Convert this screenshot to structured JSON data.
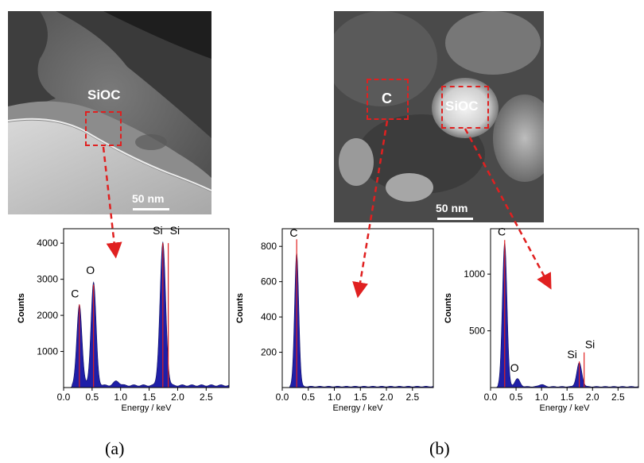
{
  "figure": {
    "panel_a_label": "(a)",
    "panel_b_label": "(b)",
    "colors": {
      "roi": "#e02020",
      "spectrum_fill": "#1f1fa8",
      "peak_marker": "#e02020",
      "scale_bar": "#ffffff"
    }
  },
  "image_a": {
    "region_label": "SiOC",
    "scale_bar": "50 nm"
  },
  "image_b": {
    "region_c_label": "C",
    "region_sioc_label": "SiOC",
    "scale_bar": "50 nm"
  },
  "chart_data": [
    {
      "type": "area",
      "panel": "a",
      "title": "",
      "xlabel": "Energy / keV",
      "ylabel": "Counts",
      "xlim": [
        0,
        2.9
      ],
      "ylim": [
        0,
        4400
      ],
      "xticks": [
        0.0,
        0.5,
        1.0,
        1.5,
        2.0,
        2.5
      ],
      "xtick_labels": [
        "0.0",
        "0.5",
        "1.0",
        "1.5",
        "2.0",
        "2.5"
      ],
      "yticks": [
        1000,
        2000,
        3000,
        4000
      ],
      "ytick_labels": [
        "1000",
        "2000",
        "3000",
        "4000"
      ],
      "peaks": [
        {
          "x": 0.277,
          "y": 2250,
          "width": 0.045
        },
        {
          "x": 0.525,
          "y": 2850,
          "width": 0.045
        },
        {
          "x": 0.93,
          "y": 120,
          "width": 0.05
        },
        {
          "x": 1.74,
          "y": 3950,
          "width": 0.05
        }
      ],
      "background": 60,
      "markers": [
        {
          "x": 0.277,
          "y": 2300
        },
        {
          "x": 0.525,
          "y": 2850
        },
        {
          "x": 1.74,
          "y": 4000
        },
        {
          "x": 1.835,
          "y": 4000
        }
      ],
      "annotations": [
        {
          "text": "C",
          "x": 0.2,
          "y": 2500
        },
        {
          "text": "O",
          "x": 0.47,
          "y": 3150
        },
        {
          "text": "Si",
          "x": 1.65,
          "y": 4250
        },
        {
          "text": "Si",
          "x": 1.95,
          "y": 4250
        }
      ]
    },
    {
      "type": "area",
      "panel": "b-left",
      "title": "",
      "xlabel": "Energy / keV",
      "ylabel": "Counts",
      "xlim": [
        0,
        2.9
      ],
      "ylim": [
        0,
        900
      ],
      "xticks": [
        0.0,
        0.5,
        1.0,
        1.5,
        2.0,
        2.5
      ],
      "xtick_labels": [
        "0.0",
        "0.5",
        "1.0",
        "1.5",
        "2.0",
        "2.5"
      ],
      "yticks": [
        200,
        400,
        600,
        800
      ],
      "ytick_labels": [
        "200",
        "400",
        "600",
        "800"
      ],
      "peaks": [
        {
          "x": 0.277,
          "y": 760,
          "width": 0.04
        }
      ],
      "background": 6,
      "markers": [
        {
          "x": 0.277,
          "y": 840
        }
      ],
      "annotations": [
        {
          "text": "C",
          "x": 0.22,
          "y": 855
        }
      ]
    },
    {
      "type": "area",
      "panel": "b-right",
      "title": "",
      "xlabel": "Energy / keV",
      "ylabel": "Counts",
      "xlim": [
        0,
        2.9
      ],
      "ylim": [
        0,
        1400
      ],
      "xticks": [
        0.0,
        0.5,
        1.0,
        1.5,
        2.0,
        2.5
      ],
      "xtick_labels": [
        "0.0",
        "0.5",
        "1.0",
        "1.5",
        "2.0",
        "2.5"
      ],
      "yticks": [
        500,
        1000
      ],
      "ytick_labels": [
        "500",
        "1000"
      ],
      "peaks": [
        {
          "x": 0.277,
          "y": 1270,
          "width": 0.045
        },
        {
          "x": 0.525,
          "y": 70,
          "width": 0.05
        },
        {
          "x": 1.0,
          "y": 20,
          "width": 0.05
        },
        {
          "x": 1.74,
          "y": 210,
          "width": 0.05
        }
      ],
      "background": 8,
      "markers": [
        {
          "x": 0.277,
          "y": 1300
        },
        {
          "x": 1.74,
          "y": 230
        },
        {
          "x": 1.835,
          "y": 310
        }
      ],
      "annotations": [
        {
          "text": "C",
          "x": 0.22,
          "y": 1340
        },
        {
          "text": "O",
          "x": 0.47,
          "y": 140
        },
        {
          "text": "Si",
          "x": 1.6,
          "y": 260
        },
        {
          "text": "Si",
          "x": 1.95,
          "y": 345
        }
      ]
    }
  ]
}
